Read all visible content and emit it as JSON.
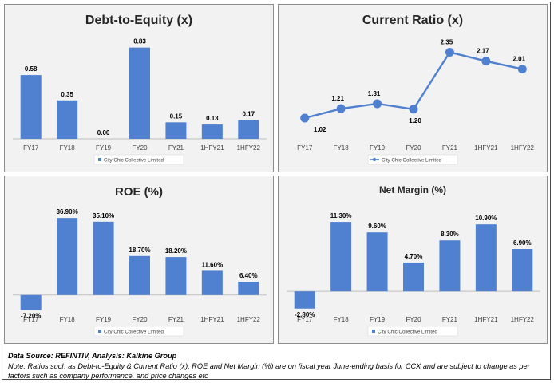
{
  "chart_data": [
    {
      "type": "bar",
      "title": "Debt-to-Equity (x)",
      "categories": [
        "FY17",
        "FY18",
        "FY19",
        "FY20",
        "FY21",
        "1HFY21",
        "1HFY22"
      ],
      "value_labels": [
        "0.58",
        "0.35",
        "0.00",
        "0.83",
        "0.15",
        "0.13",
        "0.17"
      ],
      "series": [
        {
          "name": "City Chic Collective Limited",
          "values": [
            0.58,
            0.35,
            0.0,
            0.83,
            0.15,
            0.13,
            0.17
          ]
        }
      ],
      "ylim": [
        0,
        0.9
      ],
      "grid": false,
      "legend": "bottom",
      "color": "#4f81d0"
    },
    {
      "type": "line",
      "title": "Current Ratio (x)",
      "categories": [
        "FY17",
        "FY18",
        "FY19",
        "FY20",
        "FY21",
        "1HFY21",
        "1HFY22"
      ],
      "value_labels": [
        "1.02",
        "1.21",
        "1.31",
        "1.20",
        "2.35",
        "2.17",
        "2.01"
      ],
      "series": [
        {
          "name": "City Chic Collective Limited",
          "values": [
            1.02,
            1.21,
            1.31,
            1.2,
            2.35,
            2.17,
            2.01
          ]
        }
      ],
      "ylim": [
        0.6,
        2.6
      ],
      "grid": false,
      "legend": "bottom",
      "color": "#4f81d0"
    },
    {
      "type": "bar",
      "title": "ROE (%)",
      "categories": [
        "FY17",
        "FY18",
        "FY19",
        "FY20",
        "FY21",
        "1HFY21",
        "1HFY22"
      ],
      "value_labels": [
        "-7.20%",
        "36.90%",
        "35.10%",
        "18.70%",
        "18.20%",
        "11.60%",
        "6.40%"
      ],
      "series": [
        {
          "name": "City Chic Collective Limited",
          "values": [
            -7.2,
            36.9,
            35.1,
            18.7,
            18.2,
            11.6,
            6.4
          ]
        }
      ],
      "ylim": [
        -10,
        40
      ],
      "grid": false,
      "legend": "bottom",
      "color": "#4f81d0"
    },
    {
      "type": "bar",
      "title": "Net Margin (%)",
      "categories": [
        "FY17",
        "FY18",
        "FY19",
        "FY20",
        "FY21",
        "1HFY21",
        "1HFY22"
      ],
      "value_labels": [
        "-2.80%",
        "11.30%",
        "9.60%",
        "4.70%",
        "8.30%",
        "10.90%",
        "6.90%"
      ],
      "series": [
        {
          "name": "City Chic Collective Limited",
          "values": [
            -2.8,
            11.3,
            9.6,
            4.7,
            8.3,
            10.9,
            6.9
          ]
        }
      ],
      "ylim": [
        -4,
        13
      ],
      "grid": false,
      "legend": "bottom",
      "color": "#4f81d0"
    }
  ],
  "footer": {
    "source": "Data Source: REFINTIV, Analysis: Kalkine Group",
    "note": "Note: Ratios such as Debt-to-Equity & Current Ratio (x), ROE and Net Margin (%) are on fiscal year June-ending basis for CCX and are subject to change as per factors such as company performance, and price changes etc"
  }
}
